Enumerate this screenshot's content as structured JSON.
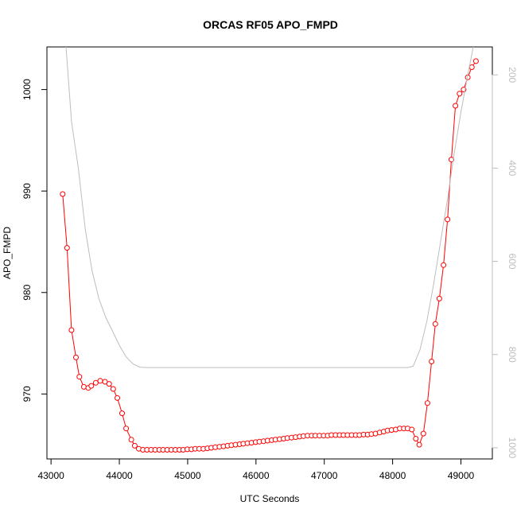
{
  "chart_data": {
    "type": "line",
    "title": "ORCAS RF05 APO_FMPD",
    "xlabel": "UTC Seconds",
    "ylabel": "APO_FMPD",
    "xlim": [
      42940,
      49460
    ],
    "ylim": [
      963.6,
      1004.2
    ],
    "x_ticks": [
      "43000",
      "44000",
      "45000",
      "46000",
      "47000",
      "48000",
      "49000"
    ],
    "y_ticks": [
      "970",
      "980",
      "990",
      "1000"
    ],
    "y2_ticks": [
      "200",
      "400",
      "600",
      "800",
      "1000"
    ],
    "y2lim": [
      1024,
      140
    ],
    "series": [
      {
        "color": "#ff0000",
        "marker": "open-circle",
        "points": [
          [
            43170,
            989.7
          ],
          [
            43235,
            984.4
          ],
          [
            43300,
            976.3
          ],
          [
            43365,
            973.6
          ],
          [
            43415,
            971.7
          ],
          [
            43480,
            970.7
          ],
          [
            43545,
            970.6
          ],
          [
            43590,
            970.8
          ],
          [
            43655,
            971.1
          ],
          [
            43720,
            971.3
          ],
          [
            43790,
            971.2
          ],
          [
            43850,
            971.0
          ],
          [
            43910,
            970.5
          ],
          [
            43970,
            969.6
          ],
          [
            44040,
            968.1
          ],
          [
            44100,
            966.6
          ],
          [
            44175,
            965.5
          ],
          [
            44225,
            964.9
          ],
          [
            44285,
            964.6
          ],
          [
            44345,
            964.5
          ],
          [
            44405,
            964.5
          ],
          [
            44465,
            964.5
          ],
          [
            44525,
            964.5
          ],
          [
            44585,
            964.5
          ],
          [
            44640,
            964.5
          ],
          [
            44700,
            964.5
          ],
          [
            44760,
            964.5
          ],
          [
            44820,
            964.5
          ],
          [
            44880,
            964.5
          ],
          [
            44935,
            964.5
          ],
          [
            44995,
            964.55
          ],
          [
            45055,
            964.55
          ],
          [
            45110,
            964.6
          ],
          [
            45170,
            964.6
          ],
          [
            45230,
            964.6
          ],
          [
            45290,
            964.65
          ],
          [
            45345,
            964.7
          ],
          [
            45405,
            964.75
          ],
          [
            45465,
            964.8
          ],
          [
            45525,
            964.85
          ],
          [
            45585,
            964.9
          ],
          [
            45640,
            964.95
          ],
          [
            45700,
            965.0
          ],
          [
            45760,
            965.05
          ],
          [
            45815,
            965.1
          ],
          [
            45875,
            965.15
          ],
          [
            45935,
            965.2
          ],
          [
            45995,
            965.25
          ],
          [
            46050,
            965.3
          ],
          [
            46110,
            965.35
          ],
          [
            46170,
            965.4
          ],
          [
            46230,
            965.45
          ],
          [
            46285,
            965.5
          ],
          [
            46345,
            965.55
          ],
          [
            46405,
            965.6
          ],
          [
            46460,
            965.65
          ],
          [
            46520,
            965.7
          ],
          [
            46580,
            965.75
          ],
          [
            46640,
            965.8
          ],
          [
            46695,
            965.85
          ],
          [
            46755,
            965.9
          ],
          [
            46815,
            965.9
          ],
          [
            46870,
            965.9
          ],
          [
            46930,
            965.9
          ],
          [
            46990,
            965.9
          ],
          [
            47050,
            965.9
          ],
          [
            47105,
            965.95
          ],
          [
            47165,
            965.95
          ],
          [
            47225,
            965.95
          ],
          [
            47280,
            965.95
          ],
          [
            47340,
            965.95
          ],
          [
            47400,
            965.95
          ],
          [
            47460,
            965.95
          ],
          [
            47515,
            965.95
          ],
          [
            47575,
            966.0
          ],
          [
            47635,
            966.0
          ],
          [
            47690,
            966.05
          ],
          [
            47750,
            966.1
          ],
          [
            47810,
            966.2
          ],
          [
            47870,
            966.3
          ],
          [
            47925,
            966.4
          ],
          [
            47985,
            966.45
          ],
          [
            48045,
            966.5
          ],
          [
            48105,
            966.6
          ],
          [
            48165,
            966.6
          ],
          [
            48220,
            966.6
          ],
          [
            48280,
            966.5
          ],
          [
            48340,
            965.6
          ],
          [
            48390,
            965.0
          ],
          [
            48450,
            966.1
          ],
          [
            48510,
            969.1
          ],
          [
            48570,
            973.2
          ],
          [
            48625,
            976.9
          ],
          [
            48685,
            979.4
          ],
          [
            48745,
            982.7
          ],
          [
            48805,
            987.2
          ],
          [
            48860,
            993.1
          ],
          [
            48920,
            998.4
          ],
          [
            48980,
            999.6
          ],
          [
            49040,
            1000.0
          ],
          [
            49100,
            1001.2
          ],
          [
            49160,
            1002.2
          ],
          [
            49220,
            1002.8
          ]
        ]
      },
      {
        "color": "#bdbdbd",
        "axis": "right",
        "points": [
          [
            43165,
            0
          ],
          [
            43200,
            100
          ],
          [
            43300,
            300
          ],
          [
            43400,
            400
          ],
          [
            43500,
            530
          ],
          [
            43600,
            620
          ],
          [
            43700,
            680
          ],
          [
            43800,
            720
          ],
          [
            43900,
            750
          ],
          [
            44000,
            780
          ],
          [
            44100,
            805
          ],
          [
            44200,
            820
          ],
          [
            44300,
            827
          ],
          [
            44400,
            828
          ],
          [
            45000,
            828
          ],
          [
            46000,
            828
          ],
          [
            47000,
            828
          ],
          [
            48000,
            828
          ],
          [
            48220,
            828
          ],
          [
            48300,
            825
          ],
          [
            48400,
            790
          ],
          [
            48500,
            730
          ],
          [
            48600,
            650
          ],
          [
            48700,
            560
          ],
          [
            48800,
            470
          ],
          [
            48900,
            370
          ],
          [
            49000,
            280
          ],
          [
            49100,
            200
          ],
          [
            49220,
            110
          ]
        ]
      }
    ]
  }
}
